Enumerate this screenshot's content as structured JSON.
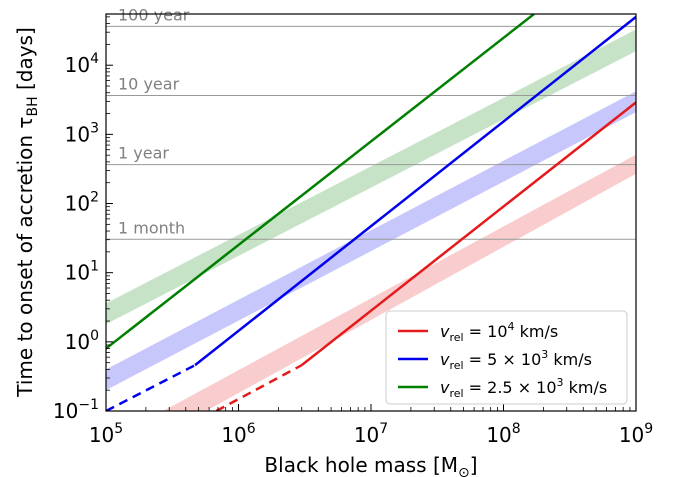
{
  "chart_data": {
    "type": "line",
    "xlabel": "Black hole mass [M",
    "xlabel_sub": "⊙",
    "xlabel_end": "]",
    "ylabel": "Time to onset of accretion τ",
    "ylabel_sub": "BH",
    "ylabel_end": " [days]",
    "xscale": "log",
    "yscale": "log",
    "xlim": [
      100000,
      1000000000
    ],
    "ylim": [
      0.1,
      55000
    ],
    "x_ticks": [
      {
        "value": 100000,
        "base": "10",
        "exp": "5"
      },
      {
        "value": 1000000,
        "base": "10",
        "exp": "6"
      },
      {
        "value": 10000000,
        "base": "10",
        "exp": "7"
      },
      {
        "value": 100000000,
        "base": "10",
        "exp": "8"
      },
      {
        "value": 1000000000,
        "base": "10",
        "exp": "9"
      }
    ],
    "y_ticks": [
      {
        "value": 0.1,
        "base": "10",
        "exp": "−1"
      },
      {
        "value": 1,
        "base": "10",
        "exp": "0"
      },
      {
        "value": 10,
        "base": "10",
        "exp": "1"
      },
      {
        "value": 100,
        "base": "10",
        "exp": "2"
      },
      {
        "value": 1000,
        "base": "10",
        "exp": "3"
      },
      {
        "value": 10000,
        "base": "10",
        "exp": "4"
      }
    ],
    "reference_lines": [
      {
        "label": "1 month",
        "y": 30.4
      },
      {
        "label": "1 year",
        "y": 365
      },
      {
        "label": "10 year",
        "y": 3650
      },
      {
        "label": "100 year",
        "y": 36500
      }
    ],
    "series": [
      {
        "name": "v_rel = 10^4 km/s",
        "legend": {
          "v": "v",
          "sub": "rel",
          "mid": " = 10",
          "sup": "4",
          "end": " km/s"
        },
        "color": "#e41a1c",
        "dashed": {
          "x": [
            680000,
            3000000
          ],
          "y": [
            0.1,
            0.46
          ]
        },
        "solid": {
          "x": [
            3000000,
            1000000000
          ],
          "y": [
            0.46,
            2900
          ]
        },
        "band": {
          "x": [
            100000,
            1000000000
          ],
          "lower": [
            0.0159,
            270
          ],
          "upper": [
            0.0356,
            510
          ]
        }
      },
      {
        "name": "v_rel = 5 × 10^3 km/s",
        "legend": {
          "v": "v",
          "sub": "rel",
          "mid": " = 5 × 10",
          "sup": "3",
          "end": " km/s"
        },
        "color": "#0000ee",
        "dashed": {
          "x": [
            100000,
            470000
          ],
          "y": [
            0.1,
            0.46
          ]
        },
        "solid": {
          "x": [
            470000,
            1000000000
          ],
          "y": [
            0.46,
            50000
          ]
        },
        "band": {
          "x": [
            100000,
            1000000000
          ],
          "lower": [
            0.2,
            2100
          ],
          "upper": [
            0.4,
            4200
          ]
        }
      },
      {
        "name": "v_rel = 2.5 × 10^3 km/s",
        "legend": {
          "v": "v",
          "sub": "rel",
          "mid": " = 2.5 × 10",
          "sup": "3",
          "end": " km/s"
        },
        "color": "#008000",
        "solid": {
          "x": [
            100000,
            170000000
          ],
          "y": [
            0.8,
            55000
          ]
        },
        "band": {
          "x": [
            100000,
            1000000000
          ],
          "lower": [
            1.8,
            16000
          ],
          "upper": [
            3.6,
            33000
          ]
        }
      }
    ],
    "legend_position": "lower-right",
    "grid": false
  }
}
